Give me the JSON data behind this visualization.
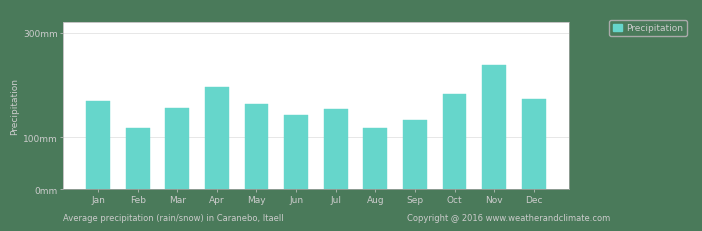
{
  "months": [
    "Jan",
    "Feb",
    "Mar",
    "Apr",
    "May",
    "Jun",
    "Jul",
    "Aug",
    "Sep",
    "Oct",
    "Nov",
    "Dec"
  ],
  "values": [
    170,
    118,
    155,
    195,
    163,
    143,
    153,
    118,
    132,
    183,
    238,
    172
  ],
  "bar_color": "#66d6cb",
  "bar_edge_color": "#66d6cb",
  "background_color": "#4a7a5a",
  "plot_bg_color": "#ffffff",
  "ylabel": "Precipitation",
  "footer_title": "Average precipitation (rain/snow) in Caranebo, Itaell",
  "footer_copyright": "Copyright @ 2016 www.weatherandclimate.com",
  "legend_label": "Precipitation",
  "legend_color": "#66d6cb",
  "yticks": [
    0,
    100,
    300
  ],
  "ytick_labels": [
    "0mm",
    "100mm",
    "300mm"
  ],
  "ylim": [
    0,
    320
  ],
  "tick_fontsize": 6.5,
  "legend_fontsize": 6.5,
  "ylabel_fontsize": 6.5,
  "footer_fontsize": 6.0,
  "grid_color": "#dddddd",
  "text_color": "#cccccc",
  "spine_color": "#aaaaaa"
}
